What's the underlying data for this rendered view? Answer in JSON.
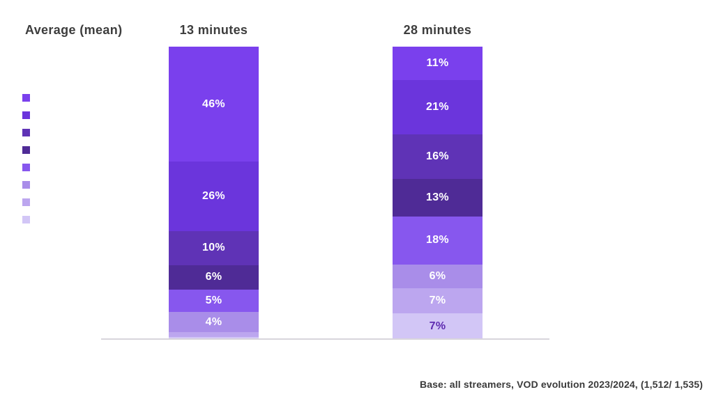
{
  "header": {
    "average_label": "Average (mean)"
  },
  "footer": {
    "base_note": "Base: all streamers, VOD evolution 2023/2024, (1,512/ 1,535)"
  },
  "chart_data": {
    "type": "bar",
    "subtype": "stacked-vertical-100pct",
    "title": "Average (mean)",
    "note": "Base: all streamers, VOD evolution 2023/2024, (1,512/ 1,535)",
    "baseline_color": "#d8d5dc",
    "legend_position": "left",
    "legend_colors": [
      "#7a40ed",
      "#6b35dc",
      "#5f33b6",
      "#4f2b96",
      "#8757ee",
      "#a98de9",
      "#bca6ef",
      "#d2c6f6"
    ],
    "columns": [
      {
        "header": "13 minutes",
        "average_minutes": 13,
        "segments": [
          {
            "value": 46,
            "label": "46%",
            "color": "#7a40ed",
            "label_color": "#ffffff"
          },
          {
            "value": 26,
            "label": "26%",
            "color": "#6b35dc",
            "label_color": "#ffffff"
          },
          {
            "value": 10,
            "label": "10%",
            "color": "#5f33b6",
            "label_color": "#ffffff"
          },
          {
            "value": 6,
            "label": "6%",
            "color": "#4f2b96",
            "label_color": "#ffffff"
          },
          {
            "value": 5,
            "label": "5%",
            "color": "#8757ee",
            "label_color": "#ffffff"
          },
          {
            "value": 4,
            "label": "4%",
            "color": "#a98de9",
            "label_color": "#ffffff"
          },
          {
            "value": 2,
            "label": "",
            "color": "#bca6ef",
            "label_color": "#ffffff"
          },
          {
            "value": 1,
            "label": "",
            "color": "#d2c6f6",
            "label_color": "#5e2bb0"
          }
        ]
      },
      {
        "header": "28 minutes",
        "average_minutes": 28,
        "segments": [
          {
            "value": 11,
            "label": "11%",
            "color": "#7a40ed",
            "label_color": "#ffffff"
          },
          {
            "value": 21,
            "label": "21%",
            "color": "#6b35dc",
            "label_color": "#ffffff"
          },
          {
            "value": 16,
            "label": "16%",
            "color": "#5f33b6",
            "label_color": "#ffffff"
          },
          {
            "value": 13,
            "label": "13%",
            "color": "#4f2b96",
            "label_color": "#ffffff"
          },
          {
            "value": 18,
            "label": "18%",
            "color": "#8757ee",
            "label_color": "#ffffff"
          },
          {
            "value": 6,
            "label": "6%",
            "color": "#a98de9",
            "label_color": "#ffffff"
          },
          {
            "value": 7,
            "label": "7%",
            "color": "#bca6ef",
            "label_color": "#ffffff"
          },
          {
            "value": 7,
            "label": "7%",
            "color": "#d2c6f6",
            "label_color": "#5e2bb0"
          }
        ]
      }
    ]
  }
}
